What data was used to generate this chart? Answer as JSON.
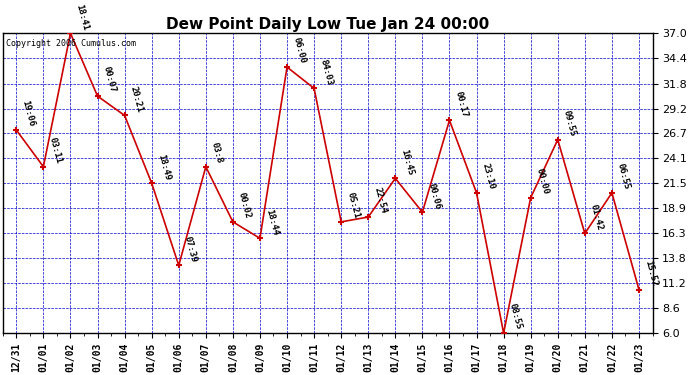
{
  "title": "Dew Point Daily Low Tue Jan 24 00:00",
  "copyright": "Copyright 2006 Cumulus.com",
  "background_color": "#ffffff",
  "fig_background": "#ffffff",
  "line_color": "#cc0000",
  "marker_color": "#cc0000",
  "grid_color": "#0000cc",
  "text_color": "#000000",
  "ylim": [
    6.0,
    37.0
  ],
  "yticks": [
    6.0,
    8.6,
    11.2,
    13.8,
    16.3,
    18.9,
    21.5,
    24.1,
    26.7,
    29.2,
    31.8,
    34.4,
    37.0
  ],
  "dates": [
    "12/31",
    "01/01",
    "01/02",
    "01/03",
    "01/04",
    "01/05",
    "01/06",
    "01/07",
    "01/08",
    "01/09",
    "01/10",
    "01/11",
    "01/12",
    "01/13",
    "01/14",
    "01/15",
    "01/16",
    "01/17",
    "01/18",
    "01/19",
    "01/20",
    "01/21",
    "01/22",
    "01/23"
  ],
  "values": [
    27.0,
    23.2,
    37.0,
    30.5,
    28.5,
    21.5,
    13.0,
    23.2,
    17.5,
    15.8,
    33.5,
    31.3,
    17.5,
    18.0,
    22.0,
    18.5,
    28.0,
    20.5,
    6.0,
    20.0,
    26.0,
    16.3,
    20.5,
    10.5
  ],
  "annotations": [
    "19:06",
    "03:11",
    "18:41",
    "00:07",
    "20:21",
    "18:49",
    "07:39",
    "03:8",
    "00:02",
    "18:44",
    "06:00",
    "84:03",
    "05:21",
    "22:54",
    "16:45",
    "00:06",
    "00:17",
    "23:10",
    "08:55",
    "00:00",
    "09:55",
    "01:42",
    "06:55",
    "15:52"
  ],
  "xlabel_fontsize": 7,
  "ylabel_fontsize": 8,
  "title_fontsize": 11,
  "annot_fontsize": 6.5
}
